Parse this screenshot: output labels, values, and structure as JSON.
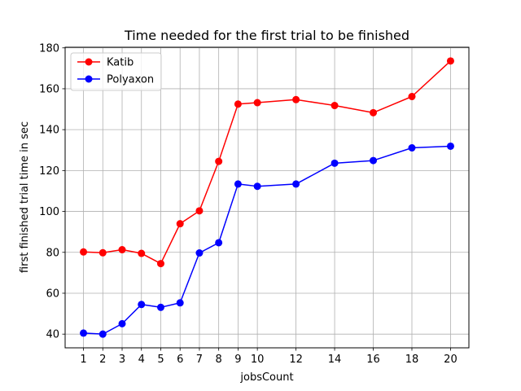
{
  "chart_data": {
    "type": "line",
    "title": "Time needed for the first trial to be finished",
    "xlabel": "jobsCount",
    "ylabel": "first finished trial time in sec",
    "x": [
      1,
      2,
      3,
      4,
      5,
      6,
      7,
      8,
      9,
      10,
      12,
      14,
      16,
      18,
      20
    ],
    "xticks": [
      1,
      2,
      3,
      4,
      5,
      6,
      7,
      8,
      9,
      10,
      12,
      14,
      16,
      18,
      20
    ],
    "yticks": [
      40,
      60,
      80,
      100,
      120,
      140,
      160,
      180
    ],
    "xlim": [
      0.05,
      20.95
    ],
    "ylim": [
      33.3,
      180.3
    ],
    "grid": true,
    "legend_position": "upper-left",
    "series": [
      {
        "name": "Katib",
        "color": "#ff0000",
        "values": [
          80.2,
          79.8,
          81.3,
          79.5,
          74.5,
          94.0,
          100.3,
          124.5,
          152.5,
          153.2,
          154.7,
          151.8,
          148.3,
          156.2,
          173.6
        ]
      },
      {
        "name": "Polyaxon",
        "color": "#0000ff",
        "values": [
          40.5,
          40.0,
          45.1,
          54.5,
          53.1,
          55.3,
          79.7,
          84.7,
          113.4,
          112.3,
          113.4,
          123.6,
          124.9,
          131.1,
          131.9
        ]
      }
    ]
  }
}
